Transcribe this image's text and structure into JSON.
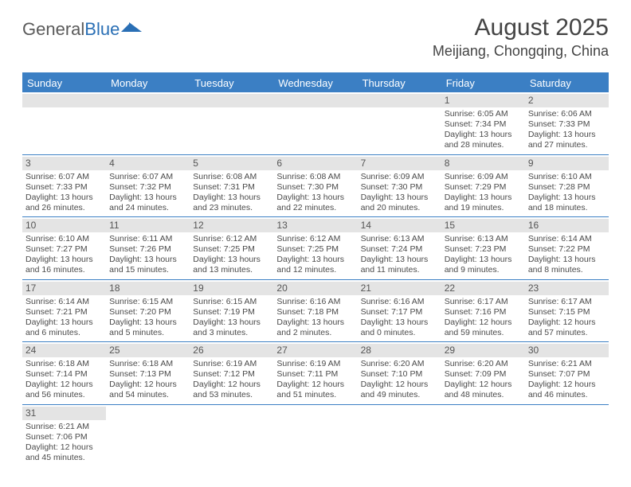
{
  "brand": {
    "part1": "General",
    "part2": "Blue"
  },
  "title": "August 2025",
  "location": "Meijiang, Chongqing, China",
  "colors": {
    "header_bg": "#3b7fc4",
    "band_bg": "#e4e4e4",
    "text": "#4a4a4a",
    "brand_gray": "#5a5a5a",
    "brand_blue": "#2a6fb5"
  },
  "weekdays": [
    "Sunday",
    "Monday",
    "Tuesday",
    "Wednesday",
    "Thursday",
    "Friday",
    "Saturday"
  ],
  "weeks": [
    [
      null,
      null,
      null,
      null,
      null,
      {
        "n": "1",
        "sr": "Sunrise: 6:05 AM",
        "ss": "Sunset: 7:34 PM",
        "dl": "Daylight: 13 hours and 28 minutes."
      },
      {
        "n": "2",
        "sr": "Sunrise: 6:06 AM",
        "ss": "Sunset: 7:33 PM",
        "dl": "Daylight: 13 hours and 27 minutes."
      }
    ],
    [
      {
        "n": "3",
        "sr": "Sunrise: 6:07 AM",
        "ss": "Sunset: 7:33 PM",
        "dl": "Daylight: 13 hours and 26 minutes."
      },
      {
        "n": "4",
        "sr": "Sunrise: 6:07 AM",
        "ss": "Sunset: 7:32 PM",
        "dl": "Daylight: 13 hours and 24 minutes."
      },
      {
        "n": "5",
        "sr": "Sunrise: 6:08 AM",
        "ss": "Sunset: 7:31 PM",
        "dl": "Daylight: 13 hours and 23 minutes."
      },
      {
        "n": "6",
        "sr": "Sunrise: 6:08 AM",
        "ss": "Sunset: 7:30 PM",
        "dl": "Daylight: 13 hours and 22 minutes."
      },
      {
        "n": "7",
        "sr": "Sunrise: 6:09 AM",
        "ss": "Sunset: 7:30 PM",
        "dl": "Daylight: 13 hours and 20 minutes."
      },
      {
        "n": "8",
        "sr": "Sunrise: 6:09 AM",
        "ss": "Sunset: 7:29 PM",
        "dl": "Daylight: 13 hours and 19 minutes."
      },
      {
        "n": "9",
        "sr": "Sunrise: 6:10 AM",
        "ss": "Sunset: 7:28 PM",
        "dl": "Daylight: 13 hours and 18 minutes."
      }
    ],
    [
      {
        "n": "10",
        "sr": "Sunrise: 6:10 AM",
        "ss": "Sunset: 7:27 PM",
        "dl": "Daylight: 13 hours and 16 minutes."
      },
      {
        "n": "11",
        "sr": "Sunrise: 6:11 AM",
        "ss": "Sunset: 7:26 PM",
        "dl": "Daylight: 13 hours and 15 minutes."
      },
      {
        "n": "12",
        "sr": "Sunrise: 6:12 AM",
        "ss": "Sunset: 7:25 PM",
        "dl": "Daylight: 13 hours and 13 minutes."
      },
      {
        "n": "13",
        "sr": "Sunrise: 6:12 AM",
        "ss": "Sunset: 7:25 PM",
        "dl": "Daylight: 13 hours and 12 minutes."
      },
      {
        "n": "14",
        "sr": "Sunrise: 6:13 AM",
        "ss": "Sunset: 7:24 PM",
        "dl": "Daylight: 13 hours and 11 minutes."
      },
      {
        "n": "15",
        "sr": "Sunrise: 6:13 AM",
        "ss": "Sunset: 7:23 PM",
        "dl": "Daylight: 13 hours and 9 minutes."
      },
      {
        "n": "16",
        "sr": "Sunrise: 6:14 AM",
        "ss": "Sunset: 7:22 PM",
        "dl": "Daylight: 13 hours and 8 minutes."
      }
    ],
    [
      {
        "n": "17",
        "sr": "Sunrise: 6:14 AM",
        "ss": "Sunset: 7:21 PM",
        "dl": "Daylight: 13 hours and 6 minutes."
      },
      {
        "n": "18",
        "sr": "Sunrise: 6:15 AM",
        "ss": "Sunset: 7:20 PM",
        "dl": "Daylight: 13 hours and 5 minutes."
      },
      {
        "n": "19",
        "sr": "Sunrise: 6:15 AM",
        "ss": "Sunset: 7:19 PM",
        "dl": "Daylight: 13 hours and 3 minutes."
      },
      {
        "n": "20",
        "sr": "Sunrise: 6:16 AM",
        "ss": "Sunset: 7:18 PM",
        "dl": "Daylight: 13 hours and 2 minutes."
      },
      {
        "n": "21",
        "sr": "Sunrise: 6:16 AM",
        "ss": "Sunset: 7:17 PM",
        "dl": "Daylight: 13 hours and 0 minutes."
      },
      {
        "n": "22",
        "sr": "Sunrise: 6:17 AM",
        "ss": "Sunset: 7:16 PM",
        "dl": "Daylight: 12 hours and 59 minutes."
      },
      {
        "n": "23",
        "sr": "Sunrise: 6:17 AM",
        "ss": "Sunset: 7:15 PM",
        "dl": "Daylight: 12 hours and 57 minutes."
      }
    ],
    [
      {
        "n": "24",
        "sr": "Sunrise: 6:18 AM",
        "ss": "Sunset: 7:14 PM",
        "dl": "Daylight: 12 hours and 56 minutes."
      },
      {
        "n": "25",
        "sr": "Sunrise: 6:18 AM",
        "ss": "Sunset: 7:13 PM",
        "dl": "Daylight: 12 hours and 54 minutes."
      },
      {
        "n": "26",
        "sr": "Sunrise: 6:19 AM",
        "ss": "Sunset: 7:12 PM",
        "dl": "Daylight: 12 hours and 53 minutes."
      },
      {
        "n": "27",
        "sr": "Sunrise: 6:19 AM",
        "ss": "Sunset: 7:11 PM",
        "dl": "Daylight: 12 hours and 51 minutes."
      },
      {
        "n": "28",
        "sr": "Sunrise: 6:20 AM",
        "ss": "Sunset: 7:10 PM",
        "dl": "Daylight: 12 hours and 49 minutes."
      },
      {
        "n": "29",
        "sr": "Sunrise: 6:20 AM",
        "ss": "Sunset: 7:09 PM",
        "dl": "Daylight: 12 hours and 48 minutes."
      },
      {
        "n": "30",
        "sr": "Sunrise: 6:21 AM",
        "ss": "Sunset: 7:07 PM",
        "dl": "Daylight: 12 hours and 46 minutes."
      }
    ],
    [
      {
        "n": "31",
        "sr": "Sunrise: 6:21 AM",
        "ss": "Sunset: 7:06 PM",
        "dl": "Daylight: 12 hours and 45 minutes."
      },
      null,
      null,
      null,
      null,
      null,
      null
    ]
  ]
}
